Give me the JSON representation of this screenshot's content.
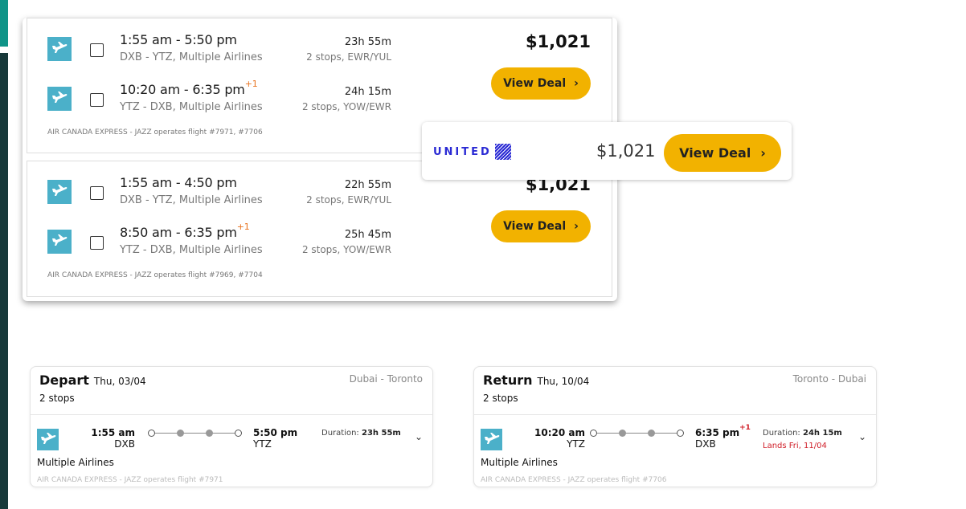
{
  "results": [
    {
      "legs": [
        {
          "times": "1:55 am - 5:50 pm",
          "plus": "",
          "route": "DXB - YTZ, Multiple Airlines",
          "duration": "23h 55m",
          "stops": "2 stops, EWR/YUL"
        },
        {
          "times": "10:20 am - 6:35 pm",
          "plus": "+1",
          "route": "YTZ - DXB, Multiple Airlines",
          "duration": "24h 15m",
          "stops": "2 stops, YOW/EWR"
        }
      ],
      "operator": "AIR CANADA EXPRESS - JAZZ operates flight #7971, #7706",
      "price": "$1,021",
      "button": "View Deal"
    },
    {
      "legs": [
        {
          "times": "1:55 am - 4:50 pm",
          "plus": "",
          "route": "DXB - YTZ, Multiple Airlines",
          "duration": "22h 55m",
          "stops": "2 stops, EWR/YUL"
        },
        {
          "times": "8:50 am - 6:35 pm",
          "plus": "+1",
          "route": "YTZ - DXB, Multiple Airlines",
          "duration": "25h 45m",
          "stops": "2 stops, YOW/EWR"
        }
      ],
      "operator": "AIR CANADA EXPRESS - JAZZ operates flight #7969, #7704",
      "price": "$1,021",
      "button": "View Deal"
    }
  ],
  "popup": {
    "airline": "UNITED",
    "price": "$1,021",
    "button": "View Deal"
  },
  "depart": {
    "title": "Depart",
    "date": "Thu, 03/04",
    "cities": "Dubai - Toronto",
    "stops": "2 stops",
    "dep_time": "1:55 am",
    "dep_code": "DXB",
    "arr_time": "5:50 pm",
    "arr_plus": "",
    "arr_code": "YTZ",
    "duration_label": "Duration:",
    "duration": "23h 55m",
    "lands": "",
    "airline": "Multiple Airlines",
    "operator": "AIR CANADA EXPRESS - JAZZ operates flight #7971"
  },
  "return": {
    "title": "Return",
    "date": "Thu, 10/04",
    "cities": "Toronto - Dubai",
    "stops": "2 stops",
    "dep_time": "10:20 am",
    "dep_code": "YTZ",
    "arr_time": "6:35 pm",
    "arr_plus": "+1",
    "arr_code": "DXB",
    "duration_label": "Duration:",
    "duration": "24h 15m",
    "lands": "Lands Fri, 11/04",
    "airline": "Multiple Airlines",
    "operator": "AIR CANADA EXPRESS - JAZZ operates flight #7706"
  },
  "colors": {
    "accent": "#f2b200",
    "logo": "#4bb0c9",
    "plus": "#e8731f",
    "lands": "#d0202a"
  }
}
